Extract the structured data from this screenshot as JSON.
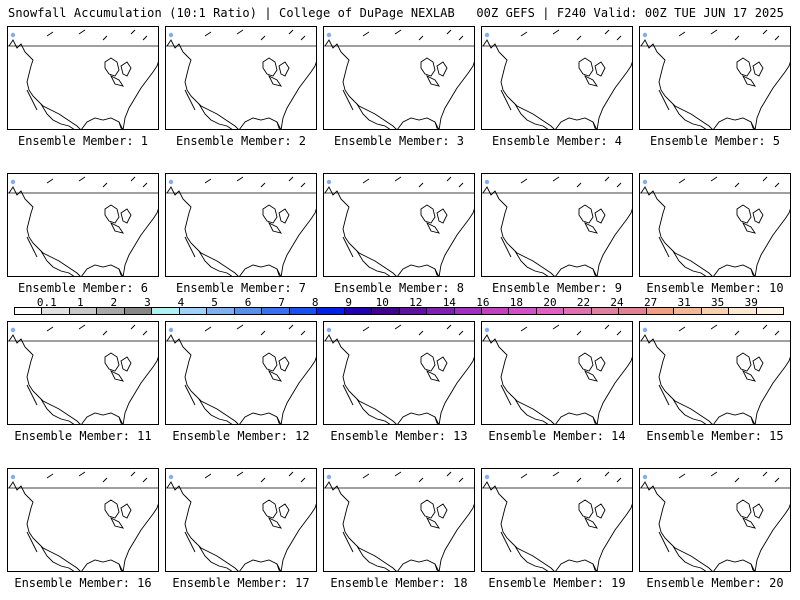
{
  "header": {
    "left": "Snowfall Accumulation (10:1 Ratio) | College of DuPage NEXLAB",
    "right": "00Z GEFS | F240 Valid: 00Z TUE JUN 17 2025"
  },
  "members": [
    {
      "label": "Ensemble Member: 1"
    },
    {
      "label": "Ensemble Member: 2"
    },
    {
      "label": "Ensemble Member: 3"
    },
    {
      "label": "Ensemble Member: 4"
    },
    {
      "label": "Ensemble Member: 5"
    },
    {
      "label": "Ensemble Member: 6"
    },
    {
      "label": "Ensemble Member: 7"
    },
    {
      "label": "Ensemble Member: 8"
    },
    {
      "label": "Ensemble Member: 9"
    },
    {
      "label": "Ensemble Member: 10"
    },
    {
      "label": "Ensemble Member: 11"
    },
    {
      "label": "Ensemble Member: 12"
    },
    {
      "label": "Ensemble Member: 13"
    },
    {
      "label": "Ensemble Member: 14"
    },
    {
      "label": "Ensemble Member: 15"
    },
    {
      "label": "Ensemble Member: 16"
    },
    {
      "label": "Ensemble Member: 17"
    },
    {
      "label": "Ensemble Member: 18"
    },
    {
      "label": "Ensemble Member: 19"
    },
    {
      "label": "Ensemble Member: 20"
    }
  ],
  "colorbar": {
    "labels": [
      "0.1",
      "1",
      "2",
      "3",
      "4",
      "5",
      "6",
      "7",
      "8",
      "9",
      "10",
      "12",
      "14",
      "16",
      "18",
      "20",
      "22",
      "24",
      "27",
      "31",
      "35",
      "39"
    ],
    "colors": [
      "#ffffff",
      "#e0e0e0",
      "#c8c8c8",
      "#a8a8a8",
      "#888888",
      "#b0f0f0",
      "#a0d0f8",
      "#80b0f0",
      "#5890f0",
      "#3870f0",
      "#1850f0",
      "#0020e8",
      "#2000b0",
      "#400090",
      "#6010a0",
      "#8020b0",
      "#a030c0",
      "#c040c0",
      "#d050c8",
      "#e060c0",
      "#e070b0",
      "#e080a0",
      "#e08090",
      "#f0a080",
      "#f0b898",
      "#f8d0b0",
      "#fce8d0",
      "#fff4e8"
    ]
  }
}
